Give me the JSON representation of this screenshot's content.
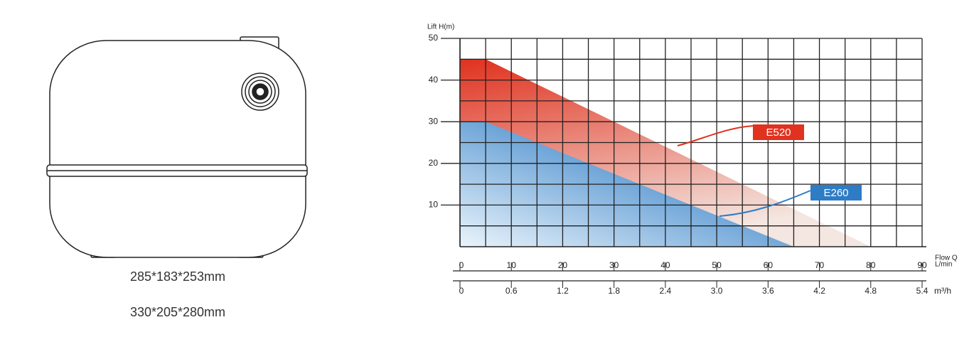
{
  "product": {
    "dimensions": [
      "285*183*253mm",
      "330*205*280mm"
    ]
  },
  "chart_data": {
    "type": "area",
    "y_label": "Lift H(m)",
    "x_label": "Flow Q",
    "x_unit": "L/min",
    "x2_unit": "m³/h",
    "series": [
      {
        "name": "E520",
        "color": "#e0321f",
        "x": [
          0,
          5,
          80
        ],
        "values": [
          45,
          45,
          0
        ]
      },
      {
        "name": "E260",
        "color": "#2e7cc6",
        "x": [
          0,
          5,
          65
        ],
        "values": [
          30,
          30,
          0
        ]
      }
    ],
    "xlim": [
      0,
      90
    ],
    "xticks": [
      0,
      10,
      20,
      30,
      40,
      50,
      60,
      70,
      80,
      90
    ],
    "x2lim": [
      0,
      5.4
    ],
    "x2ticks": [
      0,
      0.6,
      1.2,
      1.8,
      2.4,
      {
        "value": 3,
        "label": "3.0"
      },
      3.6,
      4.2,
      4.8,
      5.4
    ],
    "ylim": [
      0,
      50
    ],
    "yticks": [
      10,
      20,
      30,
      40,
      50
    ],
    "grid": true
  }
}
